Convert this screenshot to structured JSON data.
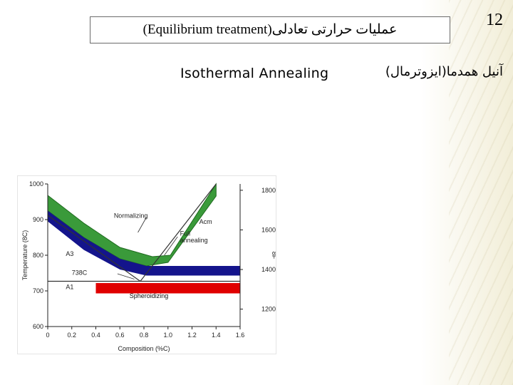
{
  "slide": {
    "number": "12",
    "title": "(Equilibrium treatment)عملیات حرارتی تعادلی",
    "subtitle_en": "Isothermal Annealing",
    "subtitle_fa": "آنیل همدما(ایزوترمال)"
  },
  "colors": {
    "green": "#3a9a3a",
    "green_edge": "#1f6b1f",
    "blue": "#14148c",
    "red": "#e00000"
  },
  "chart_data": {
    "type": "area",
    "xlabel": "Composition   (%C)",
    "ylabel": "Temperature   (8C)",
    "ylabel_right": "8F",
    "xlim": [
      0,
      1.6
    ],
    "ylim": [
      600,
      1000
    ],
    "y2lim": [
      1112,
      1832
    ],
    "x_ticks": [
      "0",
      "0.2",
      "0.4",
      "0.6",
      "0.8",
      "1.0",
      "1.2",
      "1.4",
      "1.6"
    ],
    "y_ticks": [
      "600",
      "700",
      "800",
      "900",
      "1000"
    ],
    "y2_ticks": [
      "1200",
      "1400",
      "1600",
      "1800"
    ],
    "lines": [
      {
        "name": "A3",
        "points": [
          [
            0.0,
            912
          ],
          [
            0.77,
            727
          ]
        ]
      },
      {
        "name": "Acm",
        "points": [
          [
            0.77,
            727
          ],
          [
            1.4,
            1000
          ]
        ]
      },
      {
        "name": "A1",
        "points": [
          [
            0.0,
            727
          ],
          [
            1.6,
            727
          ]
        ]
      }
    ],
    "bands": [
      {
        "name": "Normalizing",
        "color_key": "green",
        "upper": [
          [
            0.0,
            968
          ],
          [
            0.3,
            890
          ],
          [
            0.6,
            822
          ],
          [
            0.87,
            796
          ],
          [
            1.02,
            800
          ],
          [
            1.4,
            1000
          ]
        ],
        "lower": [
          [
            1.4,
            966
          ],
          [
            1.0,
            780
          ],
          [
            0.82,
            770
          ],
          [
            0.6,
            790
          ],
          [
            0.3,
            850
          ],
          [
            0.0,
            925
          ]
        ]
      },
      {
        "name": "Full annealing",
        "color_key": "blue",
        "upper": [
          [
            0.0,
            925
          ],
          [
            0.3,
            850
          ],
          [
            0.6,
            790
          ],
          [
            0.82,
            770
          ],
          [
            1.6,
            770
          ]
        ],
        "lower": [
          [
            1.6,
            743
          ],
          [
            0.82,
            743
          ],
          [
            0.6,
            760
          ],
          [
            0.3,
            815
          ],
          [
            0.0,
            895
          ]
        ]
      },
      {
        "name": "Spheroidizing",
        "color_key": "red",
        "upper": [
          [
            0.4,
            722
          ],
          [
            1.6,
            722
          ]
        ],
        "lower": [
          [
            1.6,
            693
          ],
          [
            0.4,
            693
          ]
        ]
      }
    ],
    "labels": [
      {
        "text": "Normalizing"
      },
      {
        "text": "Full"
      },
      {
        "text": "annealing"
      },
      {
        "text": "Spheroidizing"
      },
      {
        "text": "738C"
      },
      {
        "text": "A3"
      },
      {
        "text": "A1"
      },
      {
        "text": "Acm"
      }
    ]
  }
}
